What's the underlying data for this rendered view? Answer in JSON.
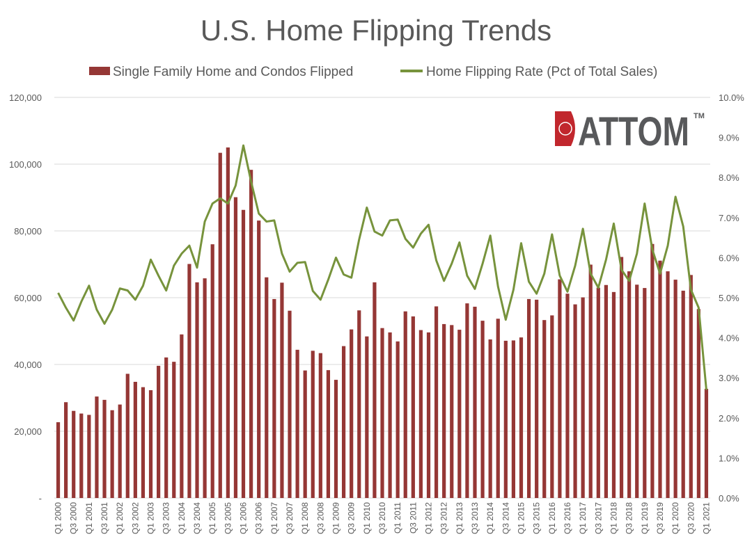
{
  "chart_data": {
    "type": "bar+line",
    "title": "U.S. Home Flipping Trends",
    "legend_position": "top",
    "grid": true,
    "logo_text": "ATTOM",
    "logo_mark": "TM",
    "colors": {
      "bars": "#953735",
      "line": "#77933C",
      "title": "#595959",
      "grid": "#D9D9D9"
    },
    "y_left": {
      "range": [
        0,
        120000
      ],
      "ticks": [
        "-",
        "20,000",
        "40,000",
        "60,000",
        "80,000",
        "100,000",
        "120,000"
      ]
    },
    "y_right": {
      "range": [
        0,
        10
      ],
      "ticks": [
        "0.0%",
        "1.0%",
        "2.0%",
        "3.0%",
        "4.0%",
        "5.0%",
        "6.0%",
        "7.0%",
        "8.0%",
        "9.0%",
        "10.0%"
      ]
    },
    "categories": [
      "Q1 2000",
      "Q2 2000",
      "Q3 2000",
      "Q4 2000",
      "Q1 2001",
      "Q2 2001",
      "Q3 2001",
      "Q4 2001",
      "Q1 2002",
      "Q2 2002",
      "Q3 2002",
      "Q4 2002",
      "Q1 2003",
      "Q2 2003",
      "Q3 2003",
      "Q4 2003",
      "Q1 2004",
      "Q2 2004",
      "Q3 2004",
      "Q4 2004",
      "Q1 2005",
      "Q2 2005",
      "Q3 2005",
      "Q4 2005",
      "Q1 2006",
      "Q2 2006",
      "Q3 2006",
      "Q4 2006",
      "Q1 2007",
      "Q2 2007",
      "Q3 2007",
      "Q4 2007",
      "Q1 2008",
      "Q2 2008",
      "Q3 2008",
      "Q4 2008",
      "Q1 2009",
      "Q2 2009",
      "Q3 2009",
      "Q4 2009",
      "Q1 2010",
      "Q2 2010",
      "Q3 2010",
      "Q4 2010",
      "Q1 2011",
      "Q2 2011",
      "Q3 2011",
      "Q4 2011",
      "Q1 2012",
      "Q2 2012",
      "Q3 2012",
      "Q4 2012",
      "Q1 2013",
      "Q2 2013",
      "Q3 2013",
      "Q4 2013",
      "Q1 2014",
      "Q2 2014",
      "Q3 2014",
      "Q4 2014",
      "Q1 2015",
      "Q2 2015",
      "Q3 2015",
      "Q4 2015",
      "Q1 2016",
      "Q2 2016",
      "Q3 2016",
      "Q4 2016",
      "Q1 2017",
      "Q2 2017",
      "Q3 2017",
      "Q4 2017",
      "Q1 2018",
      "Q2 2018",
      "Q3 2018",
      "Q4 2018",
      "Q1 2019",
      "Q2 2019",
      "Q3 2019",
      "Q4 2019",
      "Q1 2020",
      "Q2 2020",
      "Q3 2020",
      "Q4 2020",
      "Q1 2021"
    ],
    "series": [
      {
        "name": "Single Family Home and Condos Flipped",
        "axis": "left",
        "type": "bar",
        "values": [
          22700,
          28700,
          26100,
          25300,
          24900,
          30400,
          29400,
          26300,
          28000,
          37200,
          34800,
          33200,
          32300,
          39600,
          42100,
          40800,
          49000,
          70100,
          64600,
          65800,
          76000,
          103400,
          105000,
          90100,
          86300,
          98300,
          83100,
          66100,
          59600,
          64500,
          56100,
          44400,
          38200,
          44100,
          43400,
          38300,
          35400,
          45500,
          50500,
          56200,
          48400,
          64600,
          50900,
          49600,
          46900,
          55900,
          54400,
          50300,
          49600,
          57400,
          52100,
          51800,
          50400,
          58300,
          57300,
          53100,
          47500,
          53700,
          47100,
          47200,
          48100,
          59600,
          59400,
          53300,
          54700,
          65500,
          61200,
          58000,
          60100,
          69900,
          63000,
          63800,
          61700,
          72200,
          67900,
          63900,
          62900,
          76100,
          71100,
          67900,
          65400,
          62100,
          66800,
          56600,
          32700
        ]
      },
      {
        "name": "Home Flipping Rate (Pct of Total Sales)",
        "axis": "right",
        "type": "line",
        "values": [
          5.12,
          4.75,
          4.43,
          4.9,
          5.3,
          4.7,
          4.35,
          4.7,
          5.23,
          5.18,
          4.95,
          5.3,
          5.95,
          5.55,
          5.18,
          5.8,
          6.1,
          6.3,
          5.75,
          6.9,
          7.35,
          7.48,
          7.35,
          7.8,
          8.8,
          7.9,
          7.1,
          6.9,
          6.93,
          6.1,
          5.65,
          5.87,
          5.89,
          5.17,
          4.95,
          5.45,
          6.0,
          5.58,
          5.5,
          6.45,
          7.25,
          6.65,
          6.55,
          6.93,
          6.95,
          6.47,
          6.25,
          6.6,
          6.82,
          5.93,
          5.42,
          5.85,
          6.38,
          5.55,
          5.22,
          5.85,
          6.55,
          5.28,
          4.45,
          5.2,
          6.36,
          5.4,
          5.1,
          5.6,
          6.58,
          5.55,
          5.15,
          5.8,
          6.72,
          5.6,
          5.25,
          5.95,
          6.85,
          5.7,
          5.42,
          6.1,
          7.35,
          6.2,
          5.6,
          6.3,
          7.52,
          6.78,
          5.2,
          4.75,
          2.7
        ]
      }
    ]
  }
}
